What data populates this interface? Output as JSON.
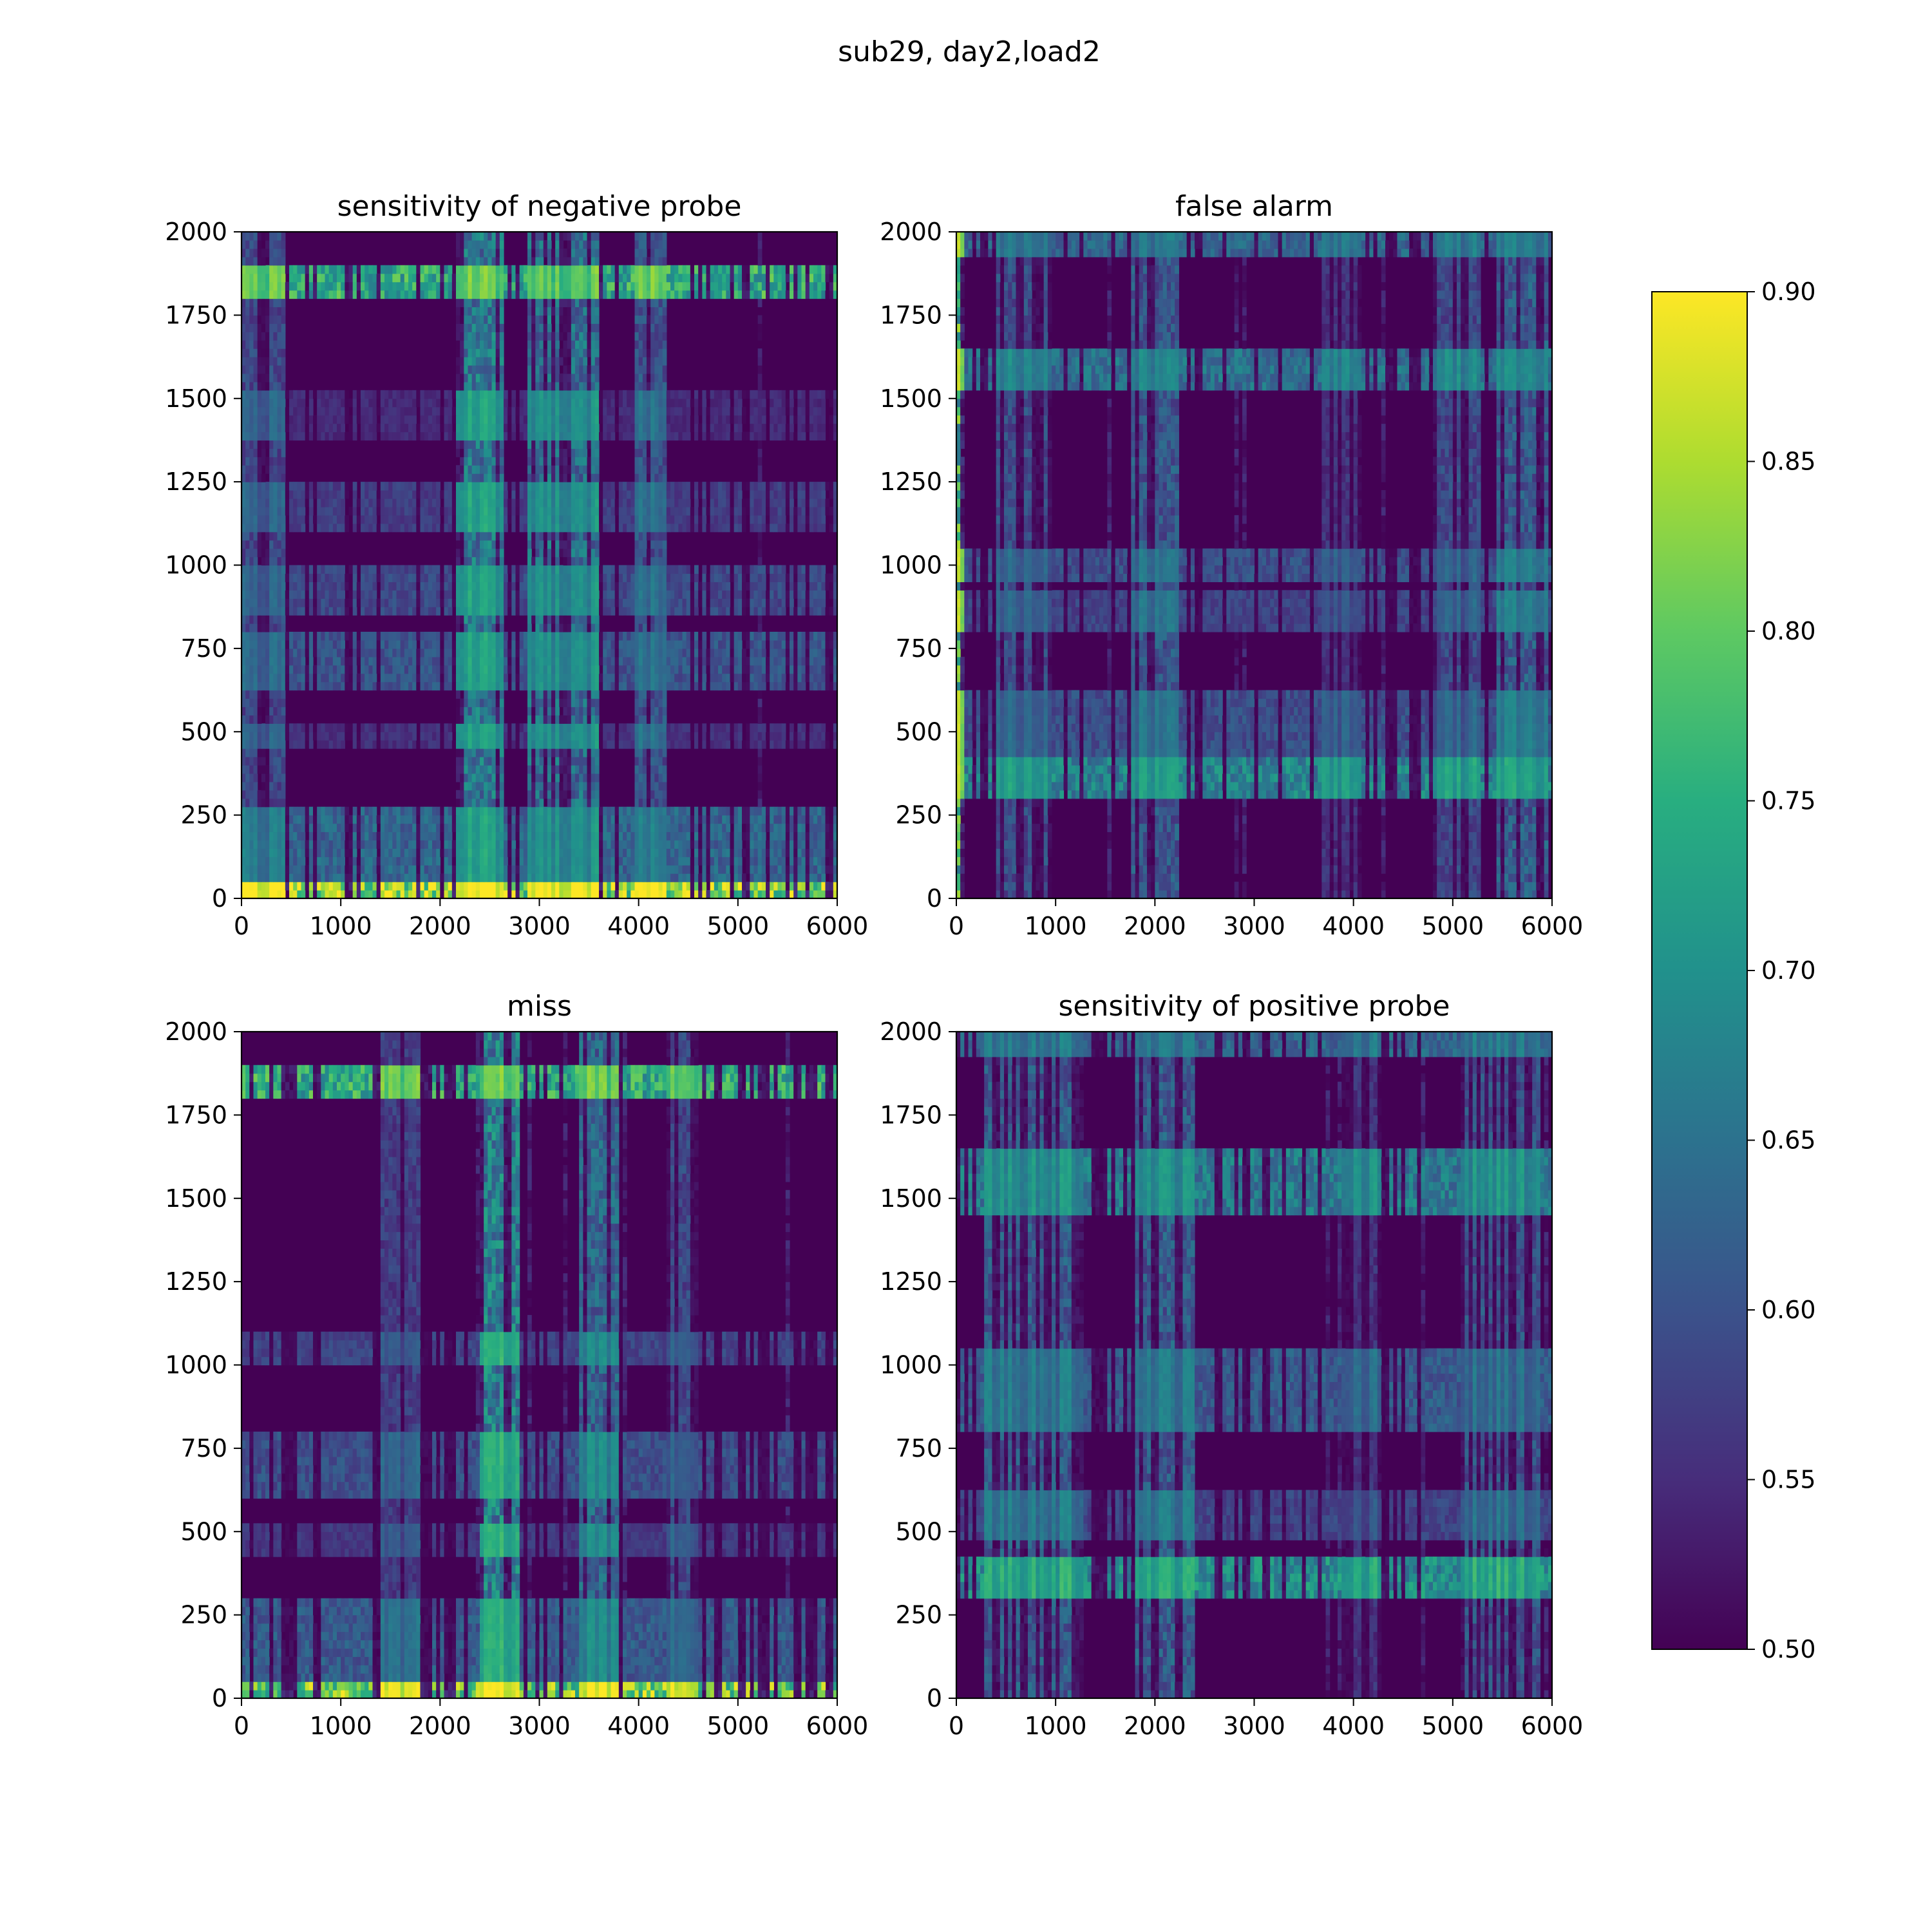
{
  "chart_data": {
    "type": "heatmap",
    "title": "sub29, day2,load2",
    "colormap": "viridis",
    "colorbar": {
      "min": 0.5,
      "max": 0.9,
      "ticks": [
        "0.50",
        "0.55",
        "0.60",
        "0.65",
        "0.70",
        "0.75",
        "0.80",
        "0.85",
        "0.90"
      ]
    },
    "xlim": [
      0,
      6000
    ],
    "ylim": [
      0,
      2000
    ],
    "x_ticks": [
      "0",
      "1000",
      "2000",
      "3000",
      "4000",
      "5000",
      "6000"
    ],
    "y_ticks": [
      "0",
      "250",
      "500",
      "750",
      "1000",
      "1250",
      "1500",
      "1750",
      "2000"
    ],
    "panels": [
      {
        "title": "sensitivity of negative probe",
        "row_bands": [
          {
            "y": [
              0,
              60
            ],
            "level": 0.9
          },
          {
            "y": [
              60,
              280
            ],
            "level": 0.66
          },
          {
            "y": [
              440,
              530
            ],
            "level": 0.57
          },
          {
            "y": [
              630,
              790
            ],
            "level": 0.63
          },
          {
            "y": [
              860,
              1000
            ],
            "level": 0.61
          },
          {
            "y": [
              1100,
              1250
            ],
            "level": 0.59
          },
          {
            "y": [
              1380,
              1520
            ],
            "level": 0.56
          },
          {
            "y": [
              1800,
              1900
            ],
            "level": 0.8
          }
        ],
        "col_bands": [
          {
            "x": [
              0,
              450
            ],
            "level": 0.62
          },
          {
            "x": [
              2150,
              2650
            ],
            "level": 0.72
          },
          {
            "x": [
              2900,
              3600
            ],
            "level": 0.7
          },
          {
            "x": [
              3950,
              4300
            ],
            "level": 0.64
          }
        ]
      },
      {
        "title": "false alarm",
        "row_bands": [
          {
            "y": [
              290,
              420
            ],
            "level": 0.72
          },
          {
            "y": [
              430,
              620
            ],
            "level": 0.62
          },
          {
            "y": [
              800,
              920
            ],
            "level": 0.6
          },
          {
            "y": [
              960,
              1060
            ],
            "level": 0.62
          },
          {
            "y": [
              1520,
              1640
            ],
            "level": 0.68
          },
          {
            "y": [
              1920,
              2000
            ],
            "level": 0.66
          }
        ],
        "col_bands": [
          {
            "x": [
              0,
              80
            ],
            "level": 0.86
          },
          {
            "x": [
              400,
              950
            ],
            "level": 0.63
          },
          {
            "x": [
              1750,
              2250
            ],
            "level": 0.65
          },
          {
            "x": [
              3700,
              4100
            ],
            "level": 0.58
          },
          {
            "x": [
              4800,
              5300
            ],
            "level": 0.62
          },
          {
            "x": [
              5450,
              5950
            ],
            "level": 0.66
          }
        ]
      },
      {
        "title": "miss",
        "row_bands": [
          {
            "y": [
              0,
              60
            ],
            "level": 0.88
          },
          {
            "y": [
              60,
              290
            ],
            "level": 0.64
          },
          {
            "y": [
              430,
              520
            ],
            "level": 0.58
          },
          {
            "y": [
              600,
              800
            ],
            "level": 0.62
          },
          {
            "y": [
              1000,
              1100
            ],
            "level": 0.6
          },
          {
            "y": [
              1800,
              1900
            ],
            "level": 0.8
          }
        ],
        "col_bands": [
          {
            "x": [
              2400,
              2800
            ],
            "level": 0.74
          },
          {
            "x": [
              3400,
              3800
            ],
            "level": 0.68
          },
          {
            "x": [
              4300,
              4600
            ],
            "level": 0.62
          },
          {
            "x": [
              1400,
              1800
            ],
            "level": 0.6
          }
        ]
      },
      {
        "title": "sensitivity of positive probe",
        "row_bands": [
          {
            "y": [
              290,
              430
            ],
            "level": 0.74
          },
          {
            "y": [
              480,
              620
            ],
            "level": 0.6
          },
          {
            "y": [
              800,
              1060
            ],
            "level": 0.64
          },
          {
            "y": [
              1450,
              1640
            ],
            "level": 0.7
          },
          {
            "y": [
              1920,
              2000
            ],
            "level": 0.66
          }
        ],
        "col_bands": [
          {
            "x": [
              300,
              1300
            ],
            "level": 0.66
          },
          {
            "x": [
              1800,
              2400
            ],
            "level": 0.66
          },
          {
            "x": [
              3900,
              4300
            ],
            "level": 0.58
          },
          {
            "x": [
              5100,
              5900
            ],
            "level": 0.64
          }
        ]
      }
    ]
  }
}
